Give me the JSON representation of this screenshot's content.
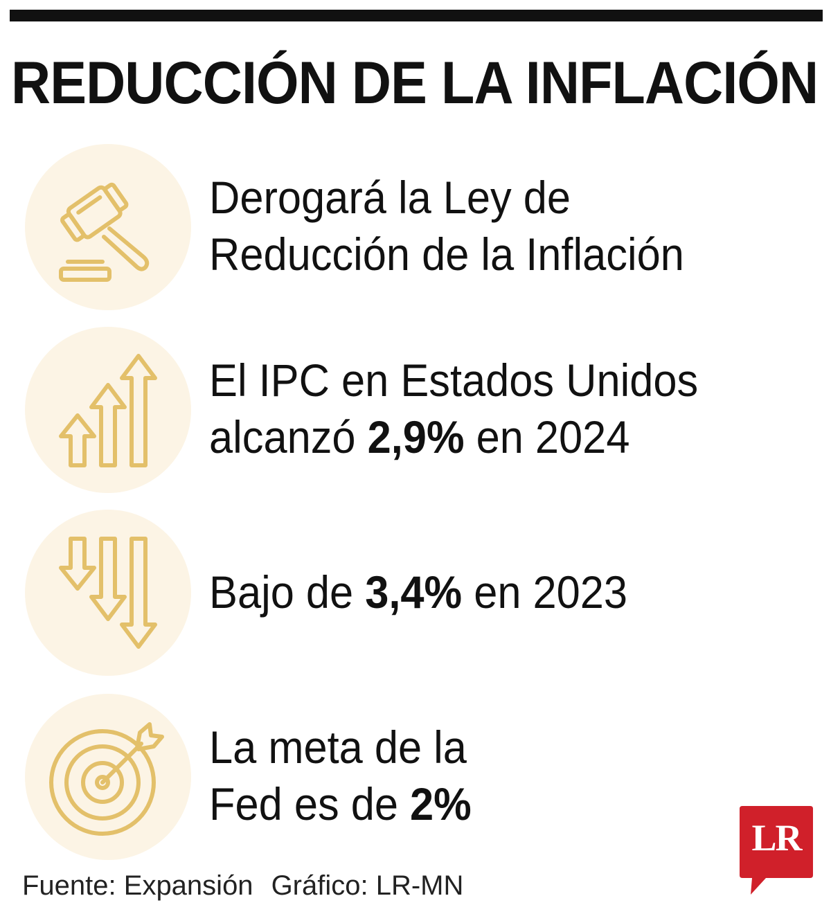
{
  "title": "REDUCCIÓN DE LA INFLACIÓN",
  "colors": {
    "accent": "#e3c06a",
    "circle_bg": "#fcf4e5",
    "brand_red": "#d0202a",
    "text": "#111111"
  },
  "items": [
    {
      "icon": "gavel-icon",
      "line1": "Derogará la Ley de",
      "line2": "Reducción de la Inflación"
    },
    {
      "icon": "arrows-up-icon",
      "line1": "El IPC en Estados Unidos",
      "line2_pre": "alcanzó ",
      "line2_bold": "2,9%",
      "line2_post": " en 2024"
    },
    {
      "icon": "arrows-down-icon",
      "line1_pre": "Bajo de ",
      "line1_bold": "3,4%",
      "line1_post": " en 2023"
    },
    {
      "icon": "target-icon",
      "line1": "La meta de la",
      "line2_pre": "Fed es de ",
      "line2_bold": "2%"
    }
  ],
  "source": {
    "fuente": "Fuente: Expansión",
    "grafico": "Gráfico: LR-MN"
  },
  "logo": {
    "text": "LR"
  }
}
